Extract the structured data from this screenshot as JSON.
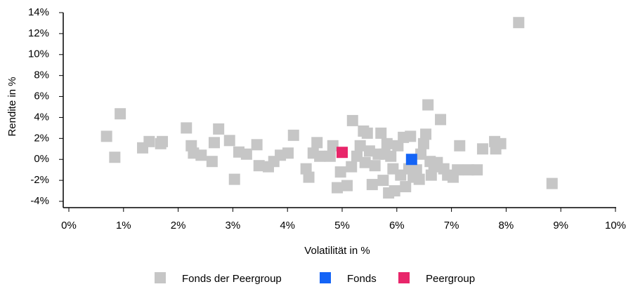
{
  "chart_data": {
    "type": "scatter",
    "x_label": "Volatilität in %",
    "y_label": "Rendite in %",
    "xlim": [
      0,
      10
    ],
    "ylim": [
      -4,
      14
    ],
    "xticks": [
      {
        "value": 0,
        "label": "0%"
      },
      {
        "value": 1,
        "label": "1%"
      },
      {
        "value": 2,
        "label": "2%"
      },
      {
        "value": 3,
        "label": "3%"
      },
      {
        "value": 4,
        "label": "4%"
      },
      {
        "value": 5,
        "label": "5%"
      },
      {
        "value": 6,
        "label": "6%"
      },
      {
        "value": 7,
        "label": "7%"
      },
      {
        "value": 8,
        "label": "8%"
      },
      {
        "value": 9,
        "label": "9%"
      },
      {
        "value": 10,
        "label": "10%"
      }
    ],
    "yticks": [
      {
        "value": -4,
        "label": "-4%"
      },
      {
        "value": -2,
        "label": "-2%"
      },
      {
        "value": 0,
        "label": "0%"
      },
      {
        "value": 2,
        "label": "2%"
      },
      {
        "value": 4,
        "label": "4%"
      },
      {
        "value": 6,
        "label": "6%"
      },
      {
        "value": 8,
        "label": "8%"
      },
      {
        "value": 10,
        "label": "10%"
      },
      {
        "value": 12,
        "label": "12%"
      },
      {
        "value": 14,
        "label": "14%"
      }
    ],
    "grid": false,
    "legend": "bottom",
    "series": [
      {
        "name": "Fonds der Peergroup",
        "color": "#c6c6c6",
        "x": [
          0.69,
          0.84,
          0.94,
          1.35,
          1.47,
          1.68,
          1.71,
          2.15,
          2.24,
          2.28,
          2.42,
          2.62,
          2.66,
          2.74,
          2.94,
          3.03,
          3.11,
          3.25,
          3.44,
          3.48,
          3.65,
          3.75,
          3.87,
          4.01,
          4.11,
          4.34,
          4.39,
          4.47,
          4.54,
          4.59,
          4.78,
          4.83,
          4.91,
          4.97,
          5.09,
          5.17,
          5.19,
          5.27,
          5.33,
          5.39,
          5.42,
          5.46,
          5.5,
          5.55,
          5.6,
          5.66,
          5.71,
          5.75,
          5.78,
          5.82,
          5.85,
          5.89,
          5.93,
          5.96,
          6.02,
          6.07,
          6.12,
          6.16,
          6.22,
          6.25,
          6.3,
          6.36,
          6.41,
          6.44,
          6.49,
          6.53,
          6.57,
          6.61,
          6.63,
          6.68,
          6.74,
          6.8,
          6.86,
          6.93,
          7.03,
          7.11,
          7.15,
          7.31,
          7.47,
          7.57,
          7.79,
          7.81,
          7.9,
          8.23,
          8.84
        ],
        "values": [
          2.2,
          0.2,
          4.35,
          1.1,
          1.7,
          1.5,
          1.7,
          3.0,
          1.3,
          0.6,
          0.4,
          -0.2,
          1.6,
          2.9,
          1.8,
          -1.9,
          0.7,
          0.5,
          1.4,
          -0.6,
          -0.7,
          -0.2,
          0.4,
          0.6,
          2.3,
          -0.9,
          -1.7,
          0.6,
          1.6,
          0.3,
          0.3,
          1.3,
          -2.7,
          -1.2,
          -2.5,
          -0.7,
          3.7,
          0.3,
          1.3,
          2.7,
          -0.3,
          2.5,
          0.8,
          -2.4,
          -0.6,
          0.5,
          2.5,
          -2.0,
          0.5,
          1.5,
          -3.2,
          0.3,
          -0.9,
          -3.0,
          1.3,
          -1.5,
          2.1,
          -2.6,
          -0.9,
          2.2,
          -1.7,
          -1.0,
          -1.9,
          0.5,
          1.5,
          2.4,
          5.2,
          -0.2,
          -1.5,
          -0.7,
          -0.3,
          3.8,
          -0.9,
          -1.5,
          -1.7,
          -1.0,
          1.3,
          -1.0,
          -1.0,
          1.0,
          1.7,
          1.0,
          1.5,
          13.05,
          -2.3
        ]
      },
      {
        "name": "Fonds",
        "color": "#1464f6",
        "x": [
          6.27
        ],
        "values": [
          0.0
        ]
      },
      {
        "name": "Peergroup",
        "color": "#e8266a",
        "x": [
          5.0
        ],
        "values": [
          0.67
        ]
      }
    ]
  }
}
